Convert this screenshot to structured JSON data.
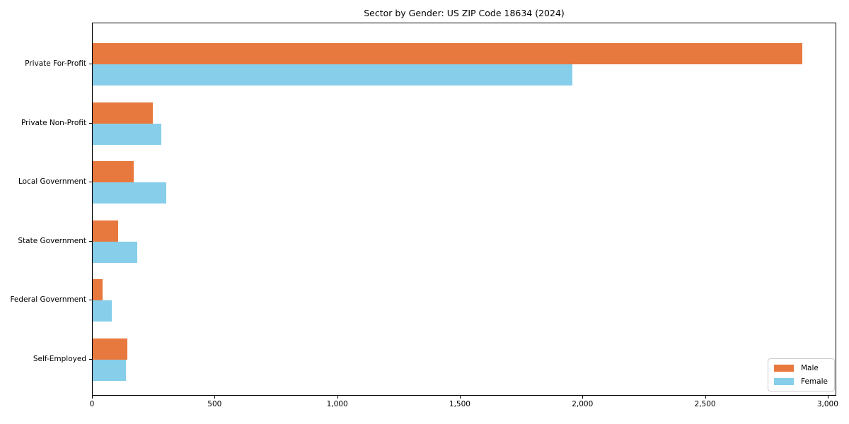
{
  "chart_data": {
    "type": "bar",
    "orientation": "horizontal",
    "title": "Sector by Gender: US ZIP Code 18634 (2024)",
    "xlabel": "",
    "ylabel": "",
    "categories": [
      "Private For-Profit",
      "Private Non-Profit",
      "Local Government",
      "State Government",
      "Federal Government",
      "Self-Employed"
    ],
    "series": [
      {
        "name": "Male",
        "color": "#e8793e",
        "values": [
          2893,
          246,
          166,
          104,
          40,
          141
        ]
      },
      {
        "name": "Female",
        "color": "#87ceeb",
        "values": [
          1957,
          280,
          300,
          183,
          77,
          135
        ]
      }
    ],
    "xlim": [
      0,
      3035
    ],
    "xticks": [
      0,
      500,
      1000,
      1500,
      2000,
      2500,
      3000
    ],
    "xtick_labels": [
      "0",
      "500",
      "1,000",
      "1,500",
      "2,000",
      "2,500",
      "3,000"
    ],
    "grid": false,
    "legend_position": "lower right",
    "legend_entries": [
      "Male",
      "Female"
    ]
  }
}
